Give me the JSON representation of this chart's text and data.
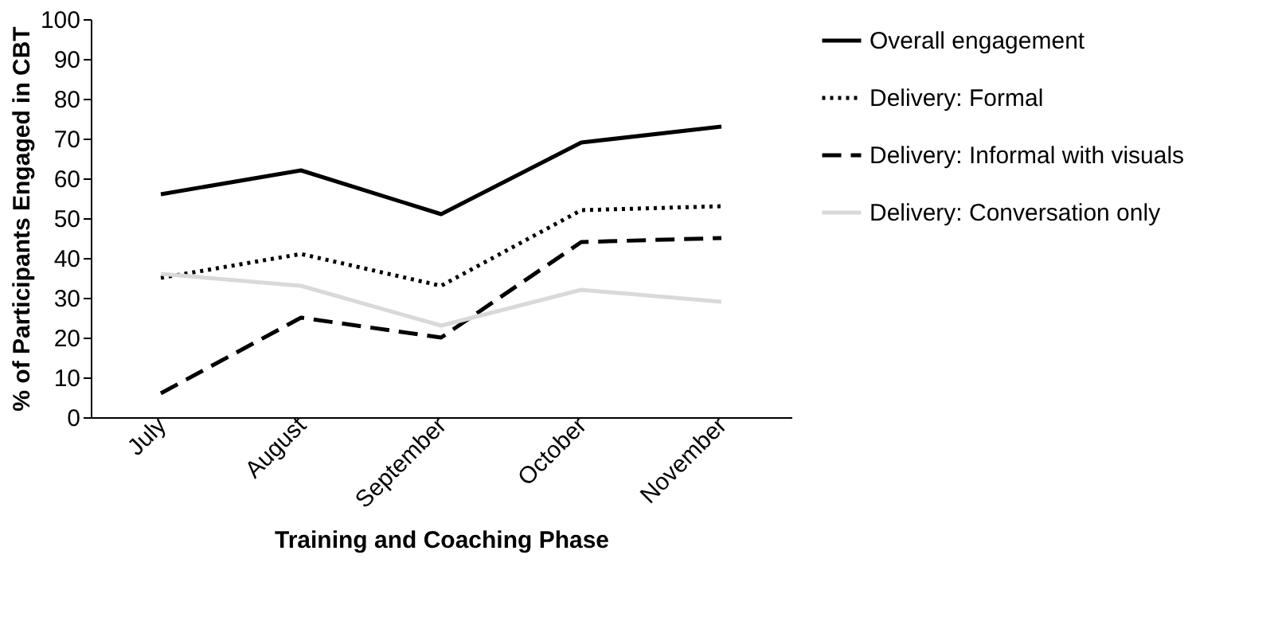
{
  "chart_data": {
    "type": "line",
    "xlabel": "Training and Coaching Phase",
    "ylabel": "% of Participants Engaged in CBT",
    "categories": [
      "July",
      "August",
      "September",
      "October",
      "November"
    ],
    "ylim": [
      0,
      100
    ],
    "yticks": [
      0,
      10,
      20,
      30,
      40,
      50,
      60,
      70,
      80,
      90,
      100
    ],
    "grid": false,
    "legend": "right",
    "marker": "none",
    "series": [
      {
        "name": "Overall engagement",
        "color": "#000000",
        "line_style": "solid",
        "values": [
          56,
          62,
          51,
          69,
          73
        ]
      },
      {
        "name": "Delivery: Formal",
        "color": "#000000",
        "line_style": "dotted",
        "values": [
          35,
          41,
          33,
          52,
          53
        ]
      },
      {
        "name": "Delivery: Informal with visuals",
        "color": "#000000",
        "line_style": "dashed",
        "values": [
          6,
          25,
          20,
          44,
          45
        ]
      },
      {
        "name": "Delivery: Conversation only",
        "color": "#d9d9d9",
        "line_style": "solid",
        "values": [
          36,
          33,
          23,
          32,
          29
        ]
      }
    ]
  }
}
